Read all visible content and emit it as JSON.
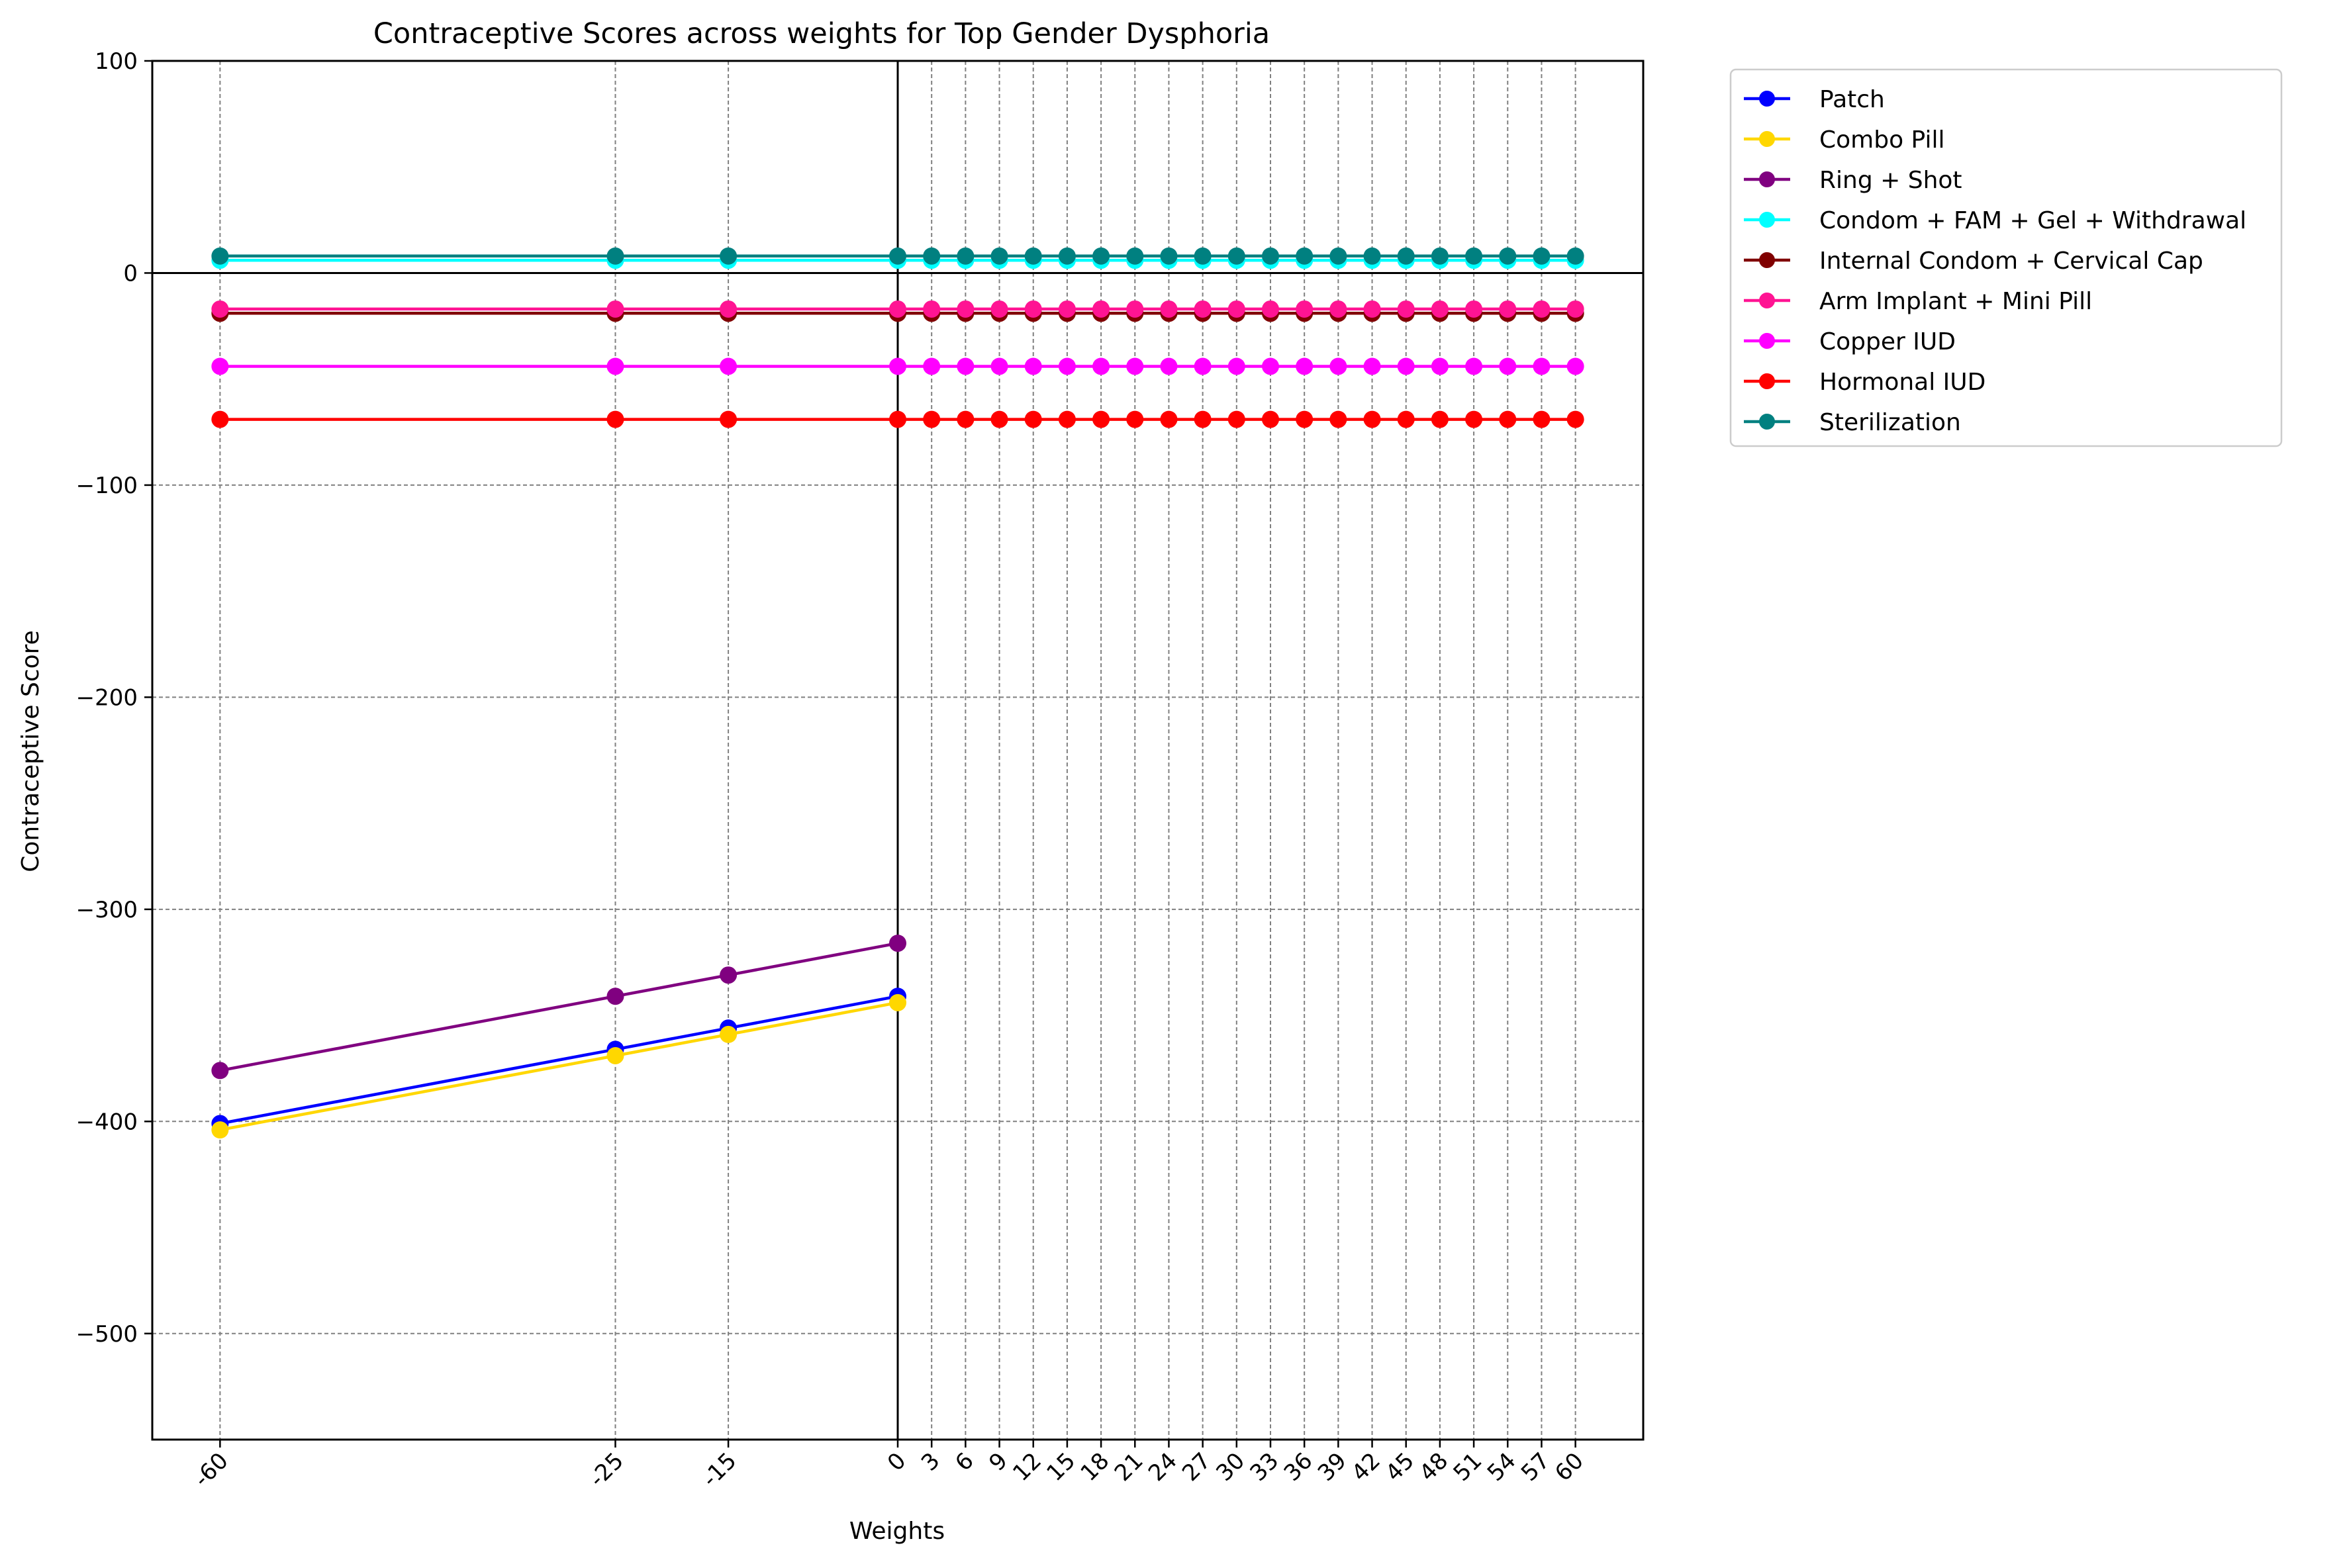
{
  "chart_data": {
    "type": "line",
    "title": "Contraceptive Scores across weights for Top Gender Dysphoria",
    "xlabel": "Weights",
    "ylabel": "Contraceptive Score",
    "x": [
      -60,
      -25,
      -15,
      0,
      3,
      6,
      9,
      12,
      15,
      18,
      21,
      24,
      27,
      30,
      33,
      36,
      39,
      42,
      45,
      48,
      51,
      54,
      57,
      60
    ],
    "x_tick_labels": [
      "-60",
      "-25",
      "-15",
      "0",
      "3",
      "6",
      "9",
      "12",
      "15",
      "18",
      "21",
      "24",
      "27",
      "30",
      "33",
      "36",
      "39",
      "42",
      "45",
      "48",
      "51",
      "54",
      "57",
      "60"
    ],
    "xlim": [
      -66,
      66
    ],
    "ylim": [
      -550,
      100
    ],
    "y_ticks": [
      100,
      0,
      -100,
      -200,
      -300,
      -400,
      -500
    ],
    "y_tick_labels": [
      "100",
      "0",
      "−100",
      "−200",
      "−300",
      "−400",
      "−500"
    ],
    "grid": true,
    "legend_position": "outside-top-right",
    "series": [
      {
        "name": "Patch",
        "color": "#0000ff",
        "x": [
          -60,
          -25,
          -15,
          0
        ],
        "values": [
          -401,
          -366,
          -356,
          -341
        ]
      },
      {
        "name": "Combo Pill",
        "color": "#ffd700",
        "x": [
          -60,
          -25,
          -15,
          0
        ],
        "values": [
          -404,
          -369,
          -359,
          -344
        ]
      },
      {
        "name": "Ring + Shot",
        "color": "#800080",
        "x": [
          -60,
          -25,
          -15,
          0
        ],
        "values": [
          -376,
          -341,
          -331,
          -316
        ]
      },
      {
        "name": "Condom + FAM + Gel + Withdrawal",
        "color": "#00ffff",
        "values": [
          6,
          6,
          6,
          6,
          6,
          6,
          6,
          6,
          6,
          6,
          6,
          6,
          6,
          6,
          6,
          6,
          6,
          6,
          6,
          6,
          6,
          6,
          6,
          6
        ]
      },
      {
        "name": "Internal Condom + Cervical Cap",
        "color": "#800000",
        "values": [
          -19,
          -19,
          -19,
          -19,
          -19,
          -19,
          -19,
          -19,
          -19,
          -19,
          -19,
          -19,
          -19,
          -19,
          -19,
          -19,
          -19,
          -19,
          -19,
          -19,
          -19,
          -19,
          -19,
          -19
        ]
      },
      {
        "name": "Arm Implant + Mini Pill",
        "color": "#ff1493",
        "values": [
          -17,
          -17,
          -17,
          -17,
          -17,
          -17,
          -17,
          -17,
          -17,
          -17,
          -17,
          -17,
          -17,
          -17,
          -17,
          -17,
          -17,
          -17,
          -17,
          -17,
          -17,
          -17,
          -17,
          -17
        ]
      },
      {
        "name": "Copper IUD",
        "color": "#ff00ff",
        "values": [
          -44,
          -44,
          -44,
          -44,
          -44,
          -44,
          -44,
          -44,
          -44,
          -44,
          -44,
          -44,
          -44,
          -44,
          -44,
          -44,
          -44,
          -44,
          -44,
          -44,
          -44,
          -44,
          -44,
          -44
        ]
      },
      {
        "name": "Hormonal IUD",
        "color": "#ff0000",
        "values": [
          -69,
          -69,
          -69,
          -69,
          -69,
          -69,
          -69,
          -69,
          -69,
          -69,
          -69,
          -69,
          -69,
          -69,
          -69,
          -69,
          -69,
          -69,
          -69,
          -69,
          -69,
          -69,
          -69,
          -69
        ]
      },
      {
        "name": "Sterilization",
        "color": "#008080",
        "values": [
          8,
          8,
          8,
          8,
          8,
          8,
          8,
          8,
          8,
          8,
          8,
          8,
          8,
          8,
          8,
          8,
          8,
          8,
          8,
          8,
          8,
          8,
          8,
          8
        ]
      }
    ]
  }
}
